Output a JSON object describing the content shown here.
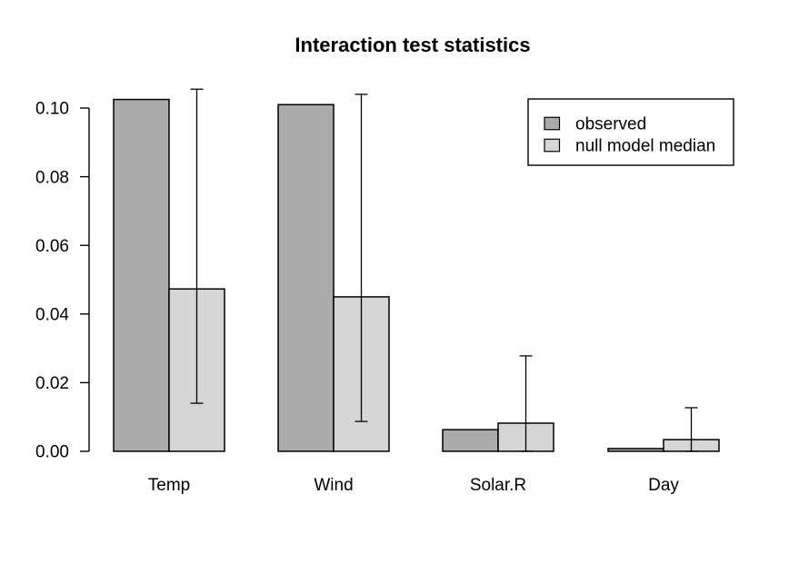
{
  "title": "Interaction test statistics",
  "colors": {
    "observed": "#ABABAB",
    "null_model": "#D6D6D6",
    "stroke": "#000000",
    "background": "#FFFFFF"
  },
  "legend": {
    "items": [
      {
        "label": "observed",
        "color_key": "observed"
      },
      {
        "label": "null model median",
        "color_key": "null_model"
      }
    ]
  },
  "chart_data": {
    "type": "bar",
    "title": "Interaction test statistics",
    "xlabel": "",
    "ylabel": "",
    "categories": [
      "Temp",
      "Wind",
      "Solar.R",
      "Day"
    ],
    "series": [
      {
        "name": "observed",
        "color_key": "observed",
        "values": [
          0.1025,
          0.101,
          0.0063,
          0.0008
        ]
      },
      {
        "name": "null model median",
        "color_key": "null_model",
        "values": [
          0.0473,
          0.045,
          0.0082,
          0.0034
        ],
        "error_bars": {
          "low": [
            0.014,
            0.0087,
            0.0,
            0.0
          ],
          "high": [
            0.1055,
            0.104,
            0.0278,
            0.0127
          ]
        }
      }
    ],
    "ylim": [
      0,
      0.1
    ],
    "yticks": [
      0,
      0.02,
      0.04,
      0.06,
      0.08,
      0.1
    ],
    "ytick_labels": [
      "0.00",
      "0.02",
      "0.04",
      "0.06",
      "0.08",
      "0.10"
    ],
    "grid": false,
    "legend_position": "top-right"
  }
}
